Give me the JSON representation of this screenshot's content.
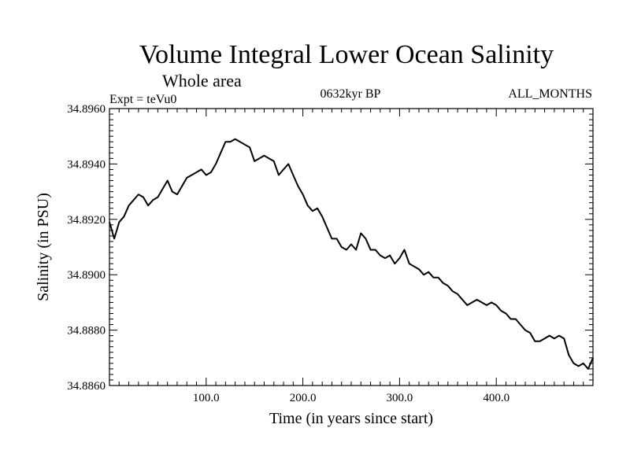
{
  "header": {
    "title": "Volume Integral Lower Ocean Salinity",
    "subtitle": "Whole area",
    "experiment": "Expt = teVu0",
    "period": "0632kyr BP",
    "months": "ALL_MONTHS"
  },
  "chart_data": {
    "type": "line",
    "title": "Volume Integral Lower Ocean Salinity",
    "subtitle": "Whole area",
    "xlabel": "Time (in years since start)",
    "ylabel": "Salinity (in PSU)",
    "xlim": [
      0,
      500
    ],
    "ylim": [
      34.886,
      34.896
    ],
    "x_ticks": [
      100,
      200,
      300,
      400
    ],
    "x_tick_labels": [
      "100.0",
      "200.0",
      "300.0",
      "400.0"
    ],
    "y_ticks": [
      34.886,
      34.888,
      34.89,
      34.892,
      34.894,
      34.896
    ],
    "y_tick_labels": [
      "34.8860",
      "34.8880",
      "34.8900",
      "34.8920",
      "34.8940",
      "34.8960"
    ],
    "grid": false,
    "line_color": "#000000",
    "series": [
      {
        "x": [
          0,
          5,
          10,
          15,
          20,
          25,
          30,
          35,
          40,
          45,
          50,
          55,
          60,
          65,
          70,
          75,
          80,
          85,
          90,
          95,
          100,
          105,
          110,
          115,
          120,
          125,
          130,
          135,
          140,
          145,
          150,
          155,
          160,
          165,
          170,
          175,
          180,
          185,
          190,
          195,
          200,
          205,
          210,
          215,
          220,
          225,
          230,
          235,
          240,
          245,
          250,
          255,
          260,
          265,
          270,
          275,
          280,
          285,
          290,
          295,
          300,
          305,
          310,
          315,
          320,
          325,
          330,
          335,
          340,
          345,
          350,
          355,
          360,
          365,
          370,
          375,
          380,
          385,
          390,
          395,
          400,
          405,
          410,
          415,
          420,
          425,
          430,
          435,
          440,
          445,
          450,
          455,
          460,
          465,
          470,
          475,
          480,
          485,
          490,
          495,
          500
        ],
        "values": [
          34.8919,
          34.8913,
          34.8919,
          34.8921,
          34.8925,
          34.8927,
          34.8929,
          34.8928,
          34.8925,
          34.8927,
          34.8928,
          34.8931,
          34.8934,
          34.893,
          34.8929,
          34.8932,
          34.8935,
          34.8936,
          34.8937,
          34.8938,
          34.8936,
          34.8937,
          34.894,
          34.8944,
          34.8948,
          34.8948,
          34.8949,
          34.8948,
          34.8947,
          34.8946,
          34.8941,
          34.8942,
          34.8943,
          34.8942,
          34.8941,
          34.8936,
          34.8938,
          34.894,
          34.8936,
          34.8932,
          34.8929,
          34.8925,
          34.8923,
          34.8924,
          34.8921,
          34.8917,
          34.8913,
          34.8913,
          34.891,
          34.8909,
          34.8911,
          34.8909,
          34.8915,
          34.8913,
          34.8909,
          34.8909,
          34.8907,
          34.8906,
          34.8907,
          34.8904,
          34.8906,
          34.8909,
          34.8904,
          34.8903,
          34.8902,
          34.89,
          34.8901,
          34.8899,
          34.8899,
          34.8897,
          34.8896,
          34.8894,
          34.8893,
          34.8891,
          34.8889,
          34.889,
          34.8891,
          34.889,
          34.8889,
          34.889,
          34.8889,
          34.8887,
          34.8886,
          34.8884,
          34.8884,
          34.8882,
          34.888,
          34.8879,
          34.8876,
          34.8876,
          34.8877,
          34.8878,
          34.8877,
          34.8878,
          34.8877,
          34.8871,
          34.8868,
          34.8867,
          34.8868,
          34.8866,
          34.887
        ]
      }
    ]
  }
}
